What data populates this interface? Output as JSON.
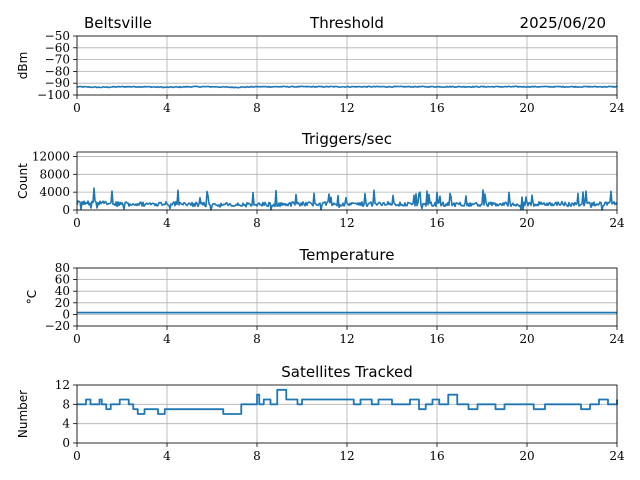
{
  "header": {
    "station": "Beltsville",
    "date": "2025/06/20"
  },
  "line_color": "#1f77b4",
  "chart_data": [
    {
      "type": "line",
      "title": "Threshold",
      "xlabel": "",
      "ylabel": "dBm",
      "xlim": [
        0,
        24
      ],
      "ylim": [
        -100,
        -50
      ],
      "xticks": [
        0,
        4,
        8,
        12,
        16,
        20,
        24
      ],
      "yticks": [
        -100,
        -90,
        -80,
        -70,
        -60,
        -50
      ],
      "ytick_labels": [
        "−100",
        "−90",
        "−80",
        "−70",
        "−60",
        "−50"
      ],
      "grid": true,
      "style": "noisy",
      "series": [
        {
          "x": [
            0,
            1,
            2,
            3,
            4,
            5,
            6,
            7,
            8,
            9,
            10,
            11,
            12,
            13,
            14,
            15,
            16,
            17,
            18,
            19,
            20,
            21,
            22,
            23,
            24
          ],
          "y": [
            -93,
            -93.5,
            -93,
            -93,
            -93.5,
            -93,
            -93,
            -93.5,
            -93,
            -93,
            -93,
            -93,
            -93,
            -93,
            -93,
            -93,
            -93,
            -93,
            -93,
            -93,
            -93,
            -93,
            -93,
            -93,
            -93
          ]
        }
      ]
    },
    {
      "type": "line",
      "title": "Triggers/sec",
      "xlabel": "",
      "ylabel": "Count",
      "xlim": [
        0,
        24
      ],
      "ylim": [
        0,
        13000
      ],
      "xticks": [
        0,
        4,
        8,
        12,
        16,
        20,
        24
      ],
      "yticks": [
        0,
        4000,
        8000,
        12000
      ],
      "ytick_labels": [
        "0",
        "4000",
        "8000",
        "12000"
      ],
      "grid": true,
      "style": "noisy",
      "series": [
        {
          "x": [
            0,
            1,
            2,
            3,
            4,
            5,
            6,
            7,
            8,
            9,
            10,
            11,
            12,
            13,
            14,
            15,
            16,
            17,
            18,
            19,
            20,
            21,
            22,
            23,
            24
          ],
          "y": [
            1600,
            1500,
            1400,
            1300,
            1500,
            1300,
            1200,
            1100,
            1200,
            1300,
            1400,
            1400,
            1300,
            1300,
            1400,
            1300,
            1300,
            1400,
            1300,
            1300,
            1300,
            1400,
            1400,
            1300,
            1400
          ]
        }
      ]
    },
    {
      "type": "line",
      "title": "Temperature",
      "xlabel": "",
      "ylabel": "°C",
      "xlim": [
        0,
        24
      ],
      "ylim": [
        -20,
        80
      ],
      "xticks": [
        0,
        4,
        8,
        12,
        16,
        20,
        24
      ],
      "yticks": [
        -20,
        0,
        20,
        40,
        60,
        80
      ],
      "ytick_labels": [
        "−20",
        "0",
        "20",
        "40",
        "60",
        "80"
      ],
      "grid": true,
      "style": "smooth",
      "series": [
        {
          "x": [
            0,
            4,
            8,
            12,
            16,
            20,
            24
          ],
          "y": [
            3,
            3,
            3,
            3,
            3,
            3,
            3
          ]
        }
      ]
    },
    {
      "type": "line",
      "title": "Satellites Tracked",
      "xlabel": "",
      "ylabel": "Number",
      "xlim": [
        0,
        24
      ],
      "ylim": [
        0,
        12
      ],
      "xticks": [
        0,
        4,
        8,
        12,
        16,
        20,
        24
      ],
      "yticks": [
        0,
        4,
        8,
        12
      ],
      "ytick_labels": [
        "0",
        "4",
        "8",
        "12"
      ],
      "grid": true,
      "style": "step",
      "series": [
        {
          "x": [
            0,
            0.4,
            0.6,
            1.0,
            1.1,
            1.3,
            1.5,
            1.9,
            2.3,
            2.5,
            2.7,
            3.0,
            3.6,
            3.9,
            4.2,
            5.0,
            6.0,
            6.5,
            7.0,
            7.3,
            7.9,
            8.0,
            8.1,
            8.3,
            8.6,
            8.9,
            9.3,
            9.8,
            10.0,
            11.0,
            11.9,
            12.3,
            12.6,
            13.1,
            13.4,
            14.0,
            14.8,
            15.2,
            15.5,
            15.8,
            16.1,
            16.5,
            16.9,
            17.4,
            17.8,
            18.2,
            18.6,
            19.0,
            19.8,
            20.3,
            20.8,
            21.3,
            22.4,
            22.8,
            23.2,
            23.6,
            24.0
          ],
          "y": [
            8,
            9,
            8,
            9,
            8,
            7,
            8,
            9,
            8,
            7,
            6,
            7,
            6,
            7,
            7,
            7,
            7,
            6,
            6,
            8,
            8,
            10,
            8,
            9,
            8,
            11,
            9,
            8,
            9,
            9,
            9,
            8,
            9,
            8,
            9,
            8,
            9,
            7,
            8,
            9,
            8,
            10,
            8,
            7,
            8,
            8,
            7,
            8,
            8,
            7,
            8,
            8,
            7,
            8,
            9,
            8,
            9
          ]
        }
      ]
    }
  ]
}
